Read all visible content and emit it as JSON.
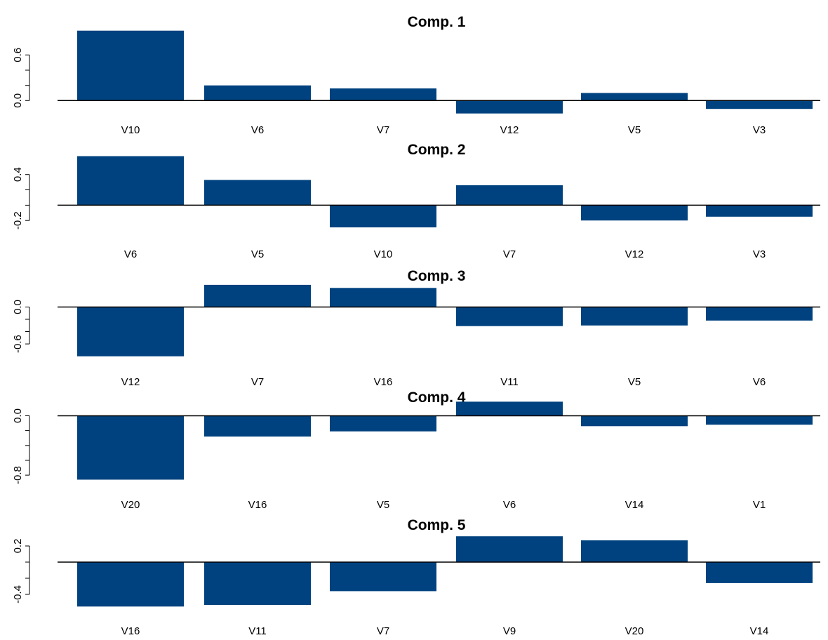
{
  "colors": {
    "bar": "#00427f",
    "axis": "#000000",
    "background": "#ffffff"
  },
  "chart_data": [
    {
      "type": "bar",
      "title": "Comp. 1",
      "categories": [
        "V10",
        "V6",
        "V7",
        "V12",
        "V5",
        "V3"
      ],
      "values": [
        0.92,
        0.2,
        0.16,
        -0.17,
        0.1,
        -0.11
      ],
      "ylim": [
        -0.2,
        1.0
      ],
      "yticks": [
        0.0,
        0.6
      ],
      "ytick_labels": [
        "0.0",
        "0.6"
      ]
    },
    {
      "type": "bar",
      "title": "Comp. 2",
      "categories": [
        "V6",
        "V5",
        "V10",
        "V7",
        "V12",
        "V3"
      ],
      "values": [
        0.64,
        0.33,
        -0.29,
        0.26,
        -0.2,
        -0.15
      ],
      "ylim": [
        -0.4,
        0.7
      ],
      "yticks": [
        -0.2,
        0.4
      ],
      "ytick_labels": [
        "-0.2",
        "0.4"
      ]
    },
    {
      "type": "bar",
      "title": "Comp. 3",
      "categories": [
        "V12",
        "V7",
        "V16",
        "V11",
        "V5",
        "V6"
      ],
      "values": [
        -0.8,
        0.36,
        0.31,
        -0.31,
        -0.3,
        -0.22
      ],
      "ylim": [
        -0.85,
        0.45
      ],
      "yticks": [
        0.0,
        -0.6
      ],
      "ytick_labels": [
        "0.0",
        "-0.6"
      ]
    },
    {
      "type": "bar",
      "title": "Comp. 4",
      "categories": [
        "V20",
        "V16",
        "V5",
        "V6",
        "V14",
        "V1"
      ],
      "values": [
        -0.86,
        -0.28,
        -0.21,
        0.19,
        -0.14,
        -0.12
      ],
      "ylim": [
        -0.95,
        0.25
      ],
      "yticks": [
        0.0,
        -0.8
      ],
      "ytick_labels": [
        "0.0",
        "-0.8"
      ]
    },
    {
      "type": "bar",
      "title": "Comp. 5",
      "categories": [
        "V16",
        "V11",
        "V7",
        "V9",
        "V20",
        "V14"
      ],
      "values": [
        -0.55,
        -0.53,
        -0.36,
        0.32,
        0.27,
        -0.26
      ],
      "ylim": [
        -0.6,
        0.4
      ],
      "yticks": [
        0.2,
        -0.4
      ],
      "ytick_labels": [
        "0.2",
        "-0.4"
      ]
    }
  ]
}
